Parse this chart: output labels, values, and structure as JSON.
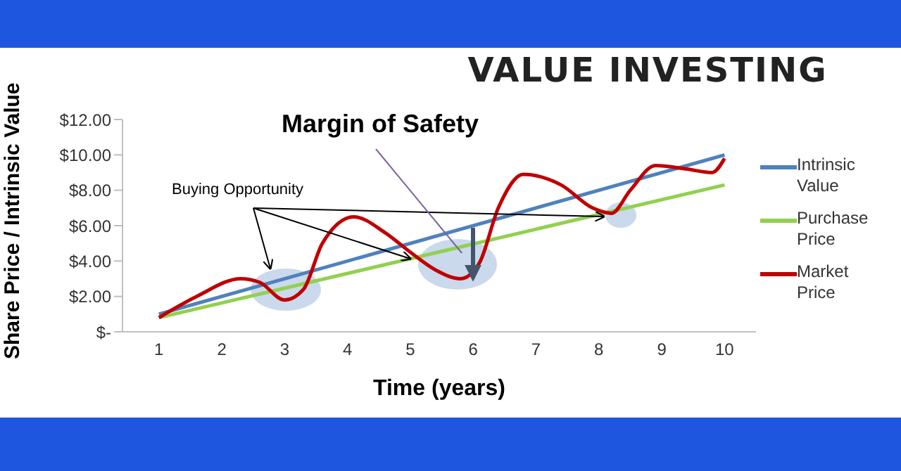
{
  "chart_data": {
    "type": "line",
    "title": "VALUE INVESTING",
    "xlabel": "Time (years)",
    "ylabel": "Share Price / Intrinsic Value",
    "annotations": [
      {
        "text": "Margin of Safety",
        "x": 5.82,
        "y": 4.45
      },
      {
        "text": "Buying Opportunity",
        "x": 5,
        "y": 4.13
      }
    ],
    "series": [
      {
        "name": "Intrinsic Value",
        "color": "#4f81bd",
        "x": [
          1,
          10
        ],
        "values": [
          1,
          10
        ]
      },
      {
        "name": "Purchase Price",
        "color": "#92d050",
        "x": [
          1,
          10
        ],
        "values": [
          0.8,
          8.3
        ]
      },
      {
        "name": "Market Price",
        "color": "#c00000",
        "x": [
          1,
          1.6,
          2.3,
          2.6,
          3,
          3.3,
          3.6,
          4.1,
          4.6,
          5,
          5.4,
          5.8,
          6.1,
          6.4,
          6.8,
          7.4,
          7.9,
          8.2,
          8.5,
          8.9,
          9.4,
          9.8,
          10
        ],
        "values": [
          0.8,
          2,
          3,
          2.8,
          1.8,
          2.4,
          5,
          6.5,
          5.6,
          4.5,
          3.5,
          3,
          3.9,
          7,
          8.9,
          8.3,
          7,
          6.7,
          8,
          9.4,
          9.2,
          9,
          9.8
        ]
      }
    ],
    "xlim": [
      0.42,
      10.5
    ],
    "xticks": [
      1,
      2,
      3,
      4,
      5,
      6,
      7,
      8,
      9,
      10
    ],
    "ylim": [
      0,
      12
    ],
    "yticks": [
      {
        "value": 0,
        "label": "$-"
      },
      {
        "value": 2,
        "label": "$2.00"
      },
      {
        "value": 4,
        "label": "$4.00"
      },
      {
        "value": 6,
        "label": "$6.00"
      },
      {
        "value": 8,
        "label": "$8.00"
      },
      {
        "value": 10,
        "label": "$10.00"
      },
      {
        "value": 12,
        "label": "$12.00"
      }
    ],
    "grid": false,
    "legend": "right",
    "marker": "none",
    "line_style": "solid"
  }
}
